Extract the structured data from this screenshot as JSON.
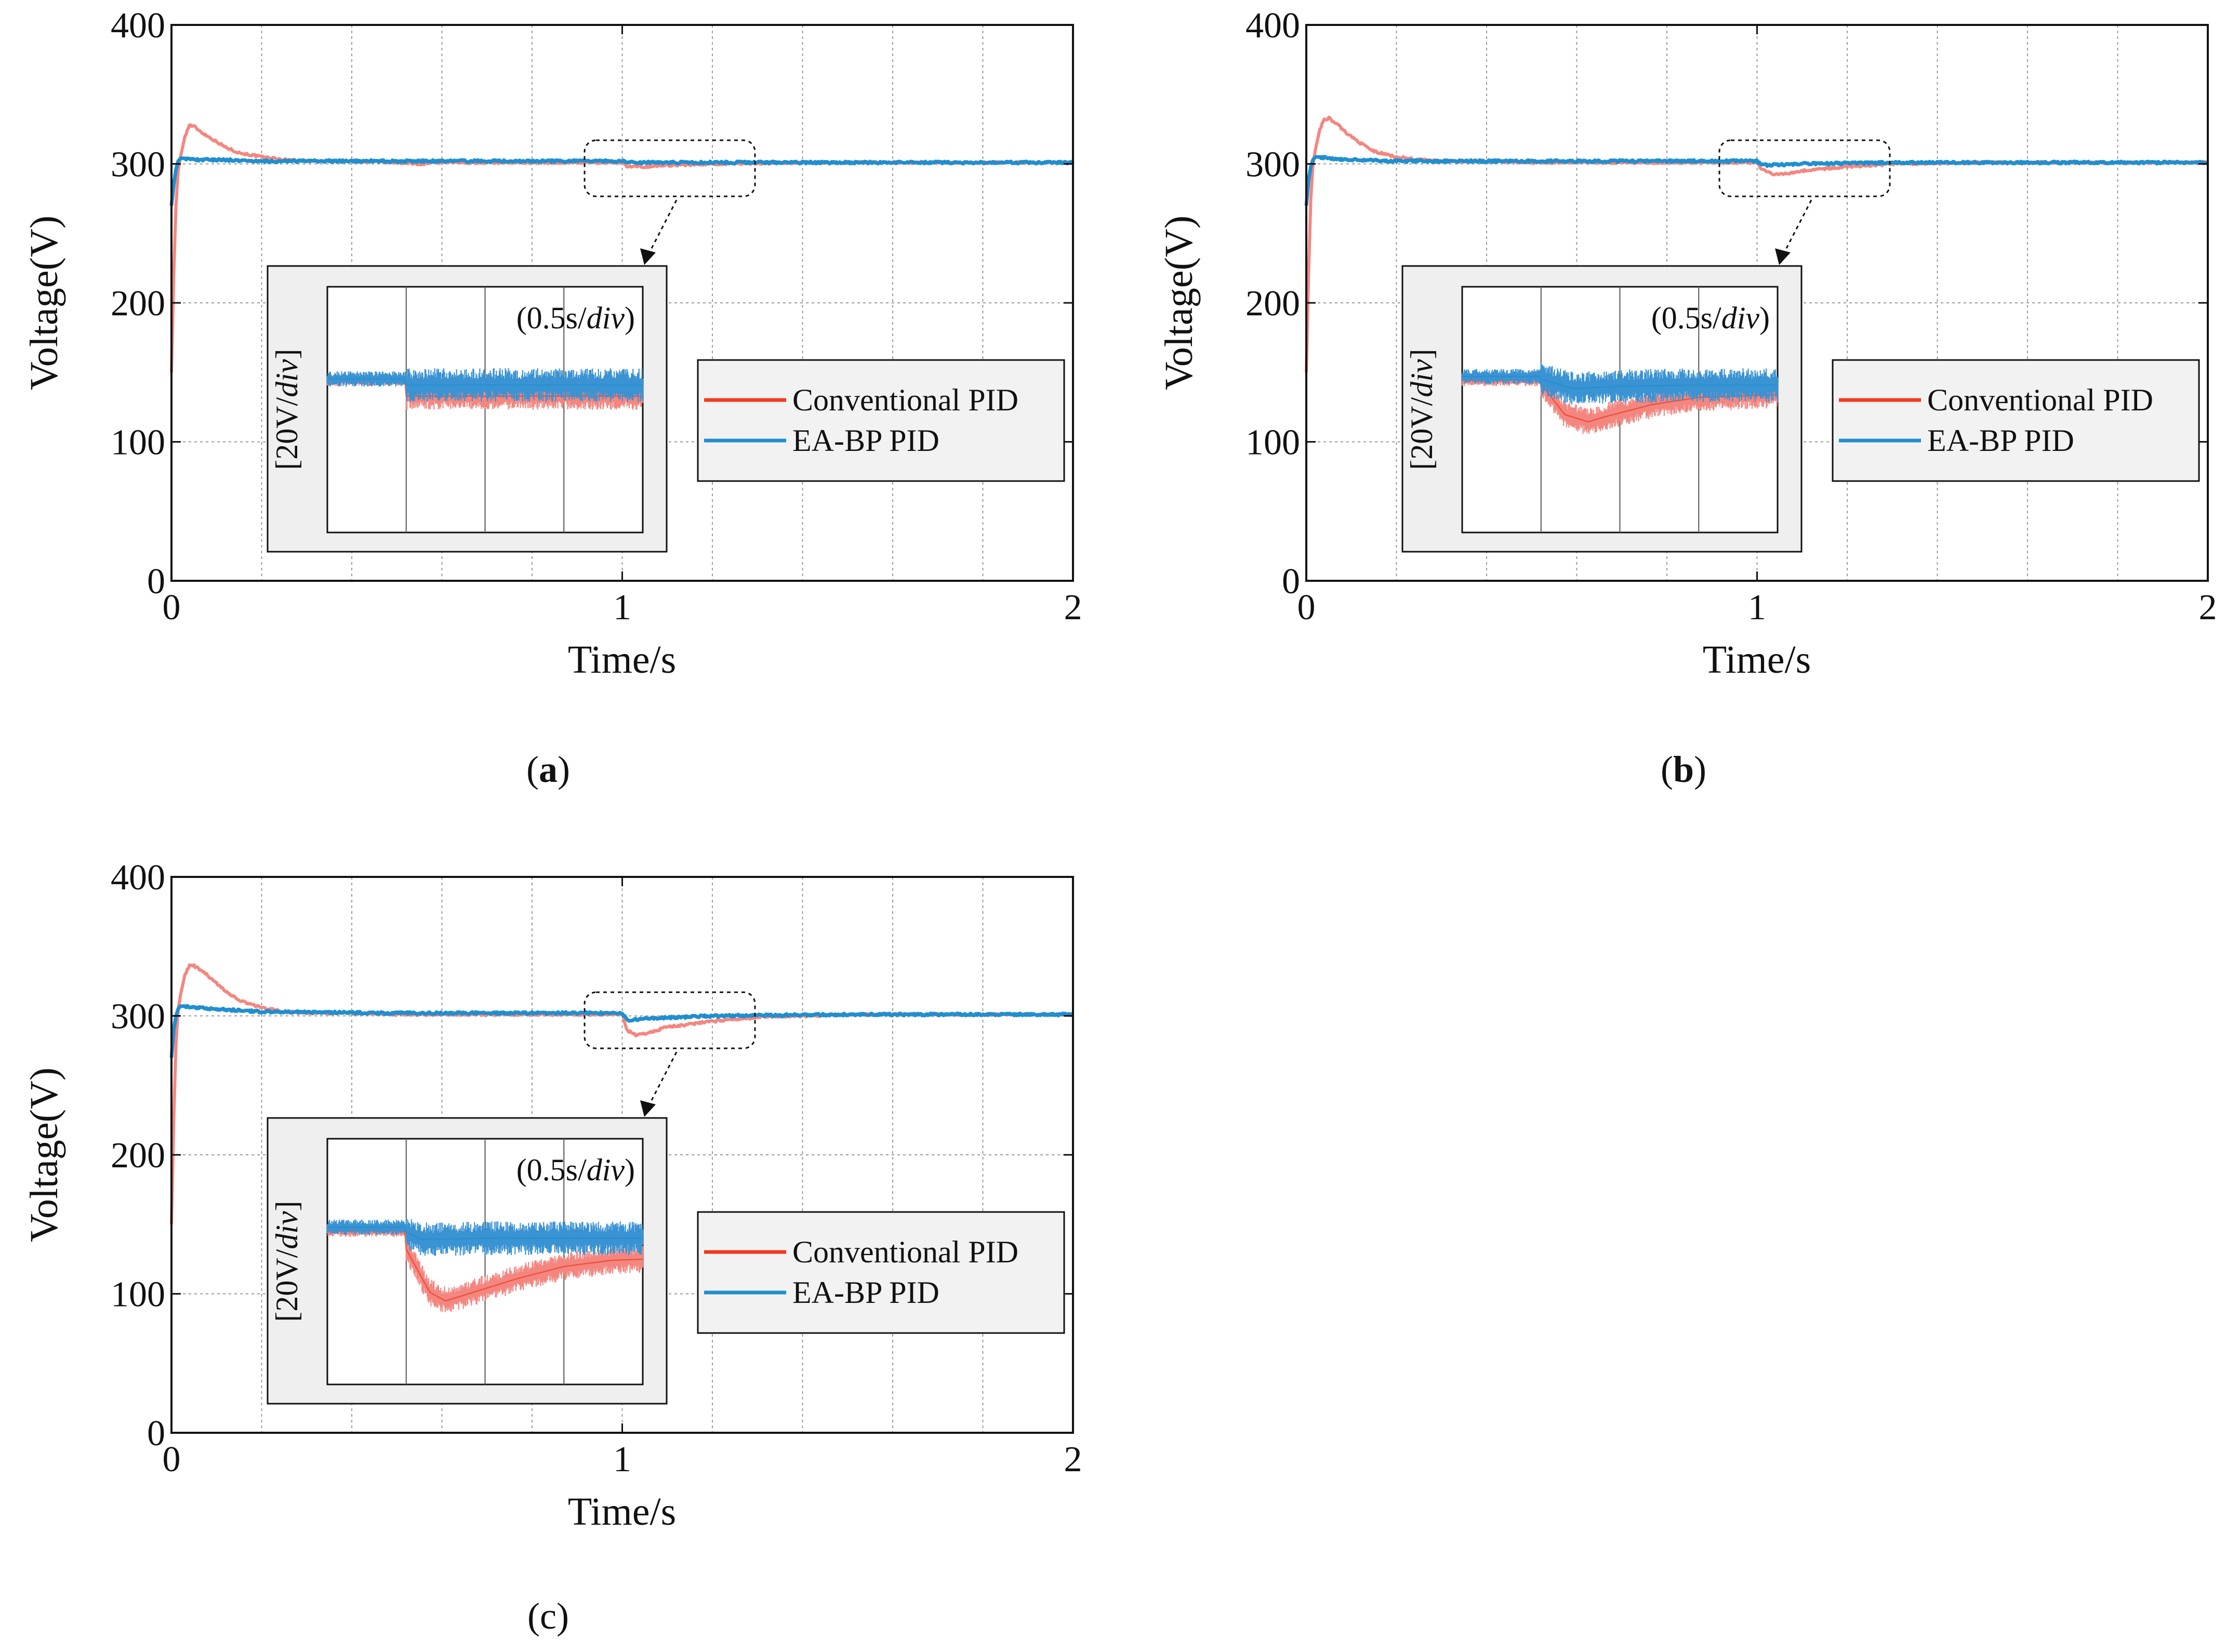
{
  "colors": {
    "conventional_line": "#f03a1e",
    "conventional_fill": "#f48680",
    "eabp_line": "#1f8fcf",
    "eabp_fill": "#3a93d3",
    "frame": "#111111",
    "grid": "#9a9a9a",
    "inset_bg": "#efefef",
    "legend_bg": "#f2f2f2"
  },
  "chart_data": [
    {
      "id": "a",
      "type": "line",
      "caption_label": "a",
      "xlabel": "Time/s",
      "ylabel": "Voltage(V)",
      "xlim": [
        0,
        2
      ],
      "ylim": [
        0,
        400
      ],
      "xticks": [
        "0",
        "1",
        "2"
      ],
      "yticks": [
        "0",
        "100",
        "200",
        "300",
        "400"
      ],
      "grid": true,
      "legend_position": "center-right",
      "series": [
        {
          "name": "Conventional PID",
          "color": "#f03a1e",
          "x": [
            0,
            0.005,
            0.01,
            0.015,
            0.02,
            0.03,
            0.04,
            0.05,
            0.07,
            0.09,
            0.12,
            0.15,
            0.2,
            0.25,
            0.3,
            0.4,
            0.5,
            0.55,
            0.6,
            0.7,
            0.8,
            0.9,
            1.0,
            1.01,
            1.05,
            1.1,
            1.2,
            1.4,
            1.6,
            1.8,
            2.0
          ],
          "y": [
            150,
            220,
            270,
            295,
            305,
            320,
            328,
            327,
            322,
            318,
            312,
            308,
            305,
            303,
            302,
            302,
            301,
            300,
            301,
            301,
            301,
            301,
            301,
            298,
            298,
            299,
            300,
            301,
            301,
            301,
            301
          ]
        },
        {
          "name": "EA-BP PID",
          "color": "#1f8fcf",
          "x": [
            0,
            0.005,
            0.01,
            0.015,
            0.02,
            0.03,
            0.05,
            0.1,
            0.2,
            0.3,
            0.5,
            0.55,
            0.7,
            1.0,
            1.01,
            1.2,
            1.5,
            2.0
          ],
          "y": [
            270,
            285,
            296,
            302,
            304,
            304,
            303,
            303,
            302,
            302,
            302,
            302,
            302,
            302,
            301,
            301,
            301,
            301
          ]
        }
      ],
      "inset": {
        "scale_x": "(0.5s/",
        "scale_x_em": "div",
        "scale_x_end": ")",
        "scale_y": "[20V/",
        "scale_y_em": "div",
        "scale_y_end": "]",
        "conventional_profile": [
          [
            0,
            124
          ],
          [
            0.999,
            124
          ],
          [
            1.0,
            111
          ],
          [
            1.2,
            111
          ],
          [
            2.0,
            111
          ]
        ],
        "eabp_profile": [
          [
            0,
            125
          ],
          [
            0.999,
            125
          ],
          [
            1.0,
            120
          ],
          [
            2.0,
            120
          ]
        ]
      }
    },
    {
      "id": "b",
      "type": "line",
      "caption_label": "b",
      "xlabel": "Time/s",
      "ylabel": "Voltage(V)",
      "xlim": [
        0,
        2
      ],
      "ylim": [
        0,
        400
      ],
      "xticks": [
        "0",
        "1",
        "2"
      ],
      "yticks": [
        "0",
        "100",
        "200",
        "300",
        "400"
      ],
      "grid": true,
      "legend_position": "center-right",
      "series": [
        {
          "name": "Conventional PID",
          "color": "#f03a1e",
          "x": [
            0,
            0.005,
            0.01,
            0.015,
            0.02,
            0.03,
            0.04,
            0.05,
            0.07,
            0.09,
            0.12,
            0.15,
            0.2,
            0.25,
            0.3,
            0.4,
            0.5,
            0.6,
            0.7,
            0.8,
            0.9,
            1.0,
            1.01,
            1.04,
            1.1,
            1.2,
            1.3,
            1.5,
            1.8,
            2.0
          ],
          "y": [
            150,
            220,
            275,
            300,
            310,
            325,
            332,
            333,
            328,
            322,
            315,
            309,
            305,
            303,
            302,
            302,
            301,
            301,
            301,
            301,
            301,
            301,
            296,
            292,
            295,
            298,
            300,
            301,
            301,
            301
          ]
        },
        {
          "name": "EA-BP PID",
          "color": "#1f8fcf",
          "x": [
            0,
            0.005,
            0.01,
            0.015,
            0.02,
            0.03,
            0.05,
            0.1,
            0.2,
            0.5,
            0.7,
            1.0,
            1.01,
            1.1,
            1.3,
            1.6,
            2.0
          ],
          "y": [
            270,
            288,
            298,
            303,
            305,
            305,
            304,
            303,
            302,
            302,
            302,
            302,
            299,
            300,
            301,
            301,
            301
          ]
        }
      ],
      "inset": {
        "scale_x": "(0.5s/",
        "scale_x_em": "div",
        "scale_x_end": ")",
        "scale_y": "[20V/",
        "scale_y_em": "div",
        "scale_y_end": "]",
        "conventional_profile": [
          [
            0,
            124
          ],
          [
            0.999,
            124
          ],
          [
            1.0,
            121
          ],
          [
            1.3,
            96
          ],
          [
            1.6,
            90
          ],
          [
            1.8,
            94
          ],
          [
            2.4,
            104
          ],
          [
            3.0,
            110
          ],
          [
            4.0,
            112
          ]
        ],
        "eabp_profile": [
          [
            0,
            127
          ],
          [
            0.999,
            127
          ],
          [
            1.0,
            125
          ],
          [
            1.4,
            117
          ],
          [
            2.0,
            119
          ],
          [
            3.0,
            120
          ],
          [
            4.0,
            120
          ]
        ]
      }
    },
    {
      "id": "c",
      "type": "line",
      "caption_label": "c",
      "xlabel": "Time/s",
      "ylabel": "Voltage(V)",
      "xlim": [
        0,
        2
      ],
      "ylim": [
        0,
        400
      ],
      "xticks": [
        "0",
        "1",
        "2"
      ],
      "yticks": [
        "0",
        "100",
        "200",
        "300",
        "400"
      ],
      "grid": true,
      "legend_position": "center-right",
      "series": [
        {
          "name": "Conventional PID",
          "color": "#f03a1e",
          "x": [
            0,
            0.005,
            0.01,
            0.015,
            0.02,
            0.03,
            0.04,
            0.05,
            0.07,
            0.09,
            0.12,
            0.15,
            0.2,
            0.25,
            0.3,
            0.4,
            0.5,
            0.6,
            0.7,
            0.8,
            0.9,
            1.0,
            1.01,
            1.03,
            1.06,
            1.1,
            1.2,
            1.3,
            1.5,
            1.8,
            2.0
          ],
          "y": [
            150,
            225,
            280,
            305,
            315,
            330,
            336,
            336,
            332,
            326,
            318,
            311,
            306,
            303,
            302,
            302,
            301,
            301,
            301,
            301,
            301,
            301,
            290,
            286,
            288,
            292,
            296,
            299,
            301,
            301,
            301
          ]
        },
        {
          "name": "EA-BP PID",
          "color": "#1f8fcf",
          "x": [
            0,
            0.005,
            0.01,
            0.015,
            0.02,
            0.03,
            0.05,
            0.1,
            0.2,
            0.5,
            0.7,
            1.0,
            1.01,
            1.05,
            1.2,
            1.5,
            2.0
          ],
          "y": [
            270,
            290,
            300,
            305,
            307,
            307,
            306,
            305,
            303,
            302,
            302,
            302,
            297,
            298,
            300,
            301,
            301
          ]
        }
      ],
      "inset": {
        "scale_x": "(0.5s/",
        "scale_x_em": "div",
        "scale_x_end": ")",
        "scale_y": "[20V/",
        "scale_y_em": "div",
        "scale_y_end": "]",
        "conventional_profile": [
          [
            0,
            125
          ],
          [
            0.999,
            125
          ],
          [
            1.0,
            110
          ],
          [
            1.3,
            75
          ],
          [
            1.5,
            68
          ],
          [
            1.9,
            76
          ],
          [
            2.4,
            86
          ],
          [
            3.0,
            96
          ],
          [
            3.6,
            101
          ],
          [
            4.0,
            102
          ]
        ],
        "eabp_profile": [
          [
            0,
            128
          ],
          [
            0.999,
            128
          ],
          [
            1.0,
            124
          ],
          [
            1.2,
            118
          ],
          [
            2.0,
            119
          ],
          [
            4.0,
            119
          ]
        ]
      }
    }
  ]
}
